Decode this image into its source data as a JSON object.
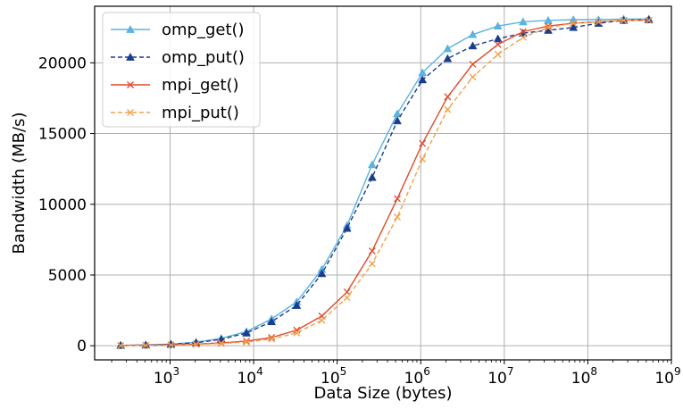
{
  "chart_data": {
    "type": "line",
    "xscale": "log",
    "xlabel": "Data Size (bytes)",
    "ylabel": "Bandwidth (MB/s)",
    "xlim": [
      125,
      1000000000
    ],
    "ylim": [
      -1000,
      24000
    ],
    "x_ticks": [
      {
        "value": 1000,
        "base": "10",
        "exp": "3"
      },
      {
        "value": 10000,
        "base": "10",
        "exp": "4"
      },
      {
        "value": 100000,
        "base": "10",
        "exp": "5"
      },
      {
        "value": 1000000,
        "base": "10",
        "exp": "6"
      },
      {
        "value": 10000000,
        "base": "10",
        "exp": "7"
      },
      {
        "value": 100000000,
        "base": "10",
        "exp": "8"
      },
      {
        "value": 1000000000,
        "base": "10",
        "exp": "9"
      }
    ],
    "y_ticks": [
      {
        "value": 0,
        "label": "0"
      },
      {
        "value": 5000,
        "label": "5000"
      },
      {
        "value": 10000,
        "label": "10000"
      },
      {
        "value": 15000,
        "label": "15000"
      },
      {
        "value": 20000,
        "label": "20000"
      }
    ],
    "grid": true,
    "legend_position": "top-left",
    "x": [
      256,
      512,
      1024,
      2048,
      4096,
      8192,
      16384,
      32768,
      65536,
      131072,
      262144,
      524288,
      1048576,
      2097152,
      4194304,
      8388608,
      16777216,
      33554432,
      67108864,
      134217728,
      268435456,
      536870912
    ],
    "series": [
      {
        "name": "omp_get()",
        "color": "#5bb3e0",
        "dash": "solid",
        "marker": "triangle",
        "values": [
          30,
          60,
          120,
          250,
          520,
          1000,
          1900,
          3100,
          5400,
          8500,
          12800,
          16400,
          19300,
          21000,
          22000,
          22600,
          22900,
          23000,
          23050,
          23050,
          23100,
          23100
        ]
      },
      {
        "name": "omp_put()",
        "color": "#1a3d8f",
        "dash": "dashed",
        "marker": "triangle",
        "values": [
          25,
          50,
          100,
          210,
          450,
          900,
          1700,
          2850,
          5100,
          8300,
          11900,
          15900,
          18800,
          20300,
          21200,
          21700,
          22100,
          22300,
          22500,
          22800,
          23000,
          23050
        ]
      },
      {
        "name": "mpi_get()",
        "color": "#e04a2f",
        "dash": "solid",
        "marker": "x",
        "values": [
          15,
          30,
          60,
          120,
          200,
          330,
          580,
          1100,
          2100,
          3800,
          6700,
          10400,
          14300,
          17600,
          19900,
          21300,
          22200,
          22600,
          22800,
          22900,
          23000,
          23000
        ]
      },
      {
        "name": "mpi_put()",
        "color": "#f0a04b",
        "dash": "dashed",
        "marker": "x",
        "values": [
          10,
          20,
          45,
          90,
          160,
          260,
          480,
          900,
          1800,
          3400,
          5800,
          9100,
          13200,
          16700,
          19000,
          20600,
          21800,
          22500,
          22800,
          22900,
          23000,
          23000
        ]
      }
    ]
  }
}
